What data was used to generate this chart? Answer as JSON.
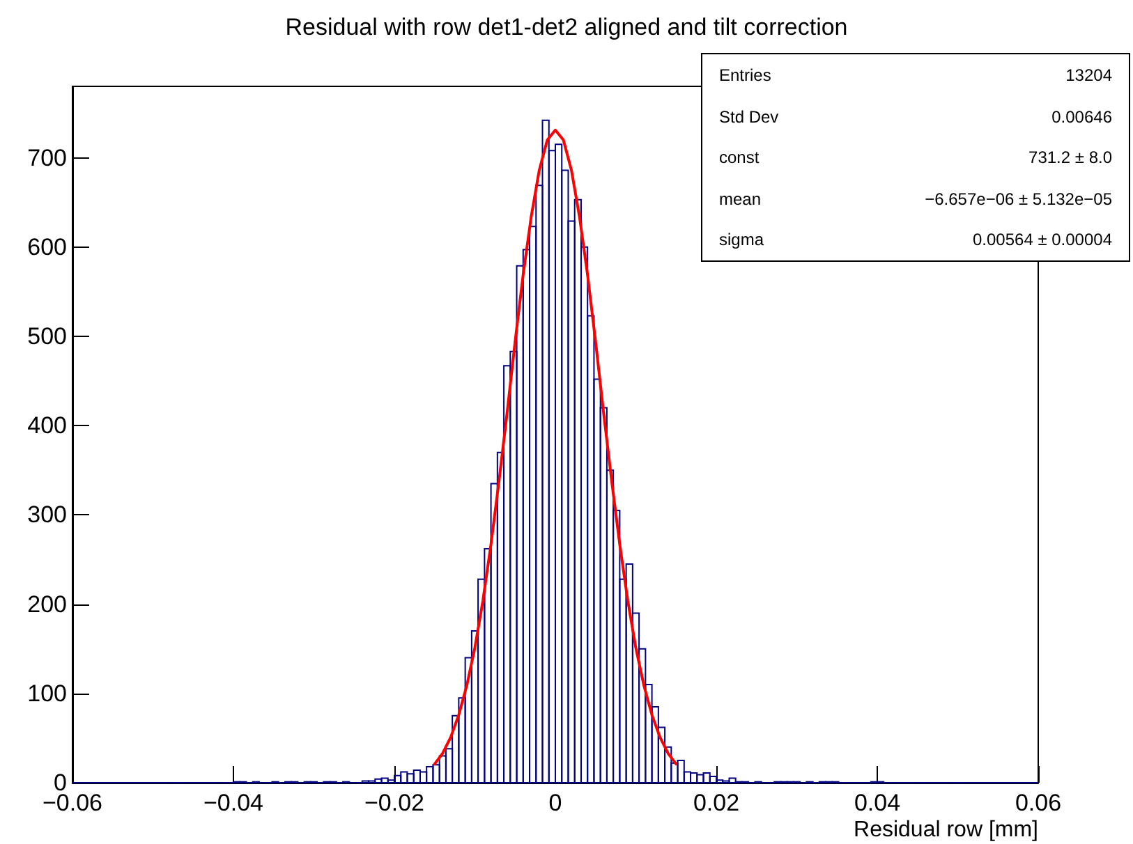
{
  "chart_data": {
    "type": "histogram",
    "title": "Residual with row det1-det2 aligned and tilt correction",
    "xlabel": "Residual row [mm]",
    "annotations": [
      "Entries",
      "13204",
      "Std Dev",
      "0.00646",
      "const",
      "731.2  ± 8.0",
      "mean",
      "−6.657e−06  ± 5.132e−05",
      "sigma",
      "0.00564  ± 0.00004"
    ],
    "bins": [
      -0.06,
      -0.0592,
      -0.0584,
      -0.0576,
      -0.0568,
      -0.056,
      -0.0552,
      -0.0544,
      -0.0536,
      -0.0528,
      -0.052,
      -0.0512,
      -0.0504,
      -0.0496,
      -0.0488,
      -0.048,
      -0.0472,
      -0.0464,
      -0.0456,
      -0.0448,
      -0.044,
      -0.0432,
      -0.0424,
      -0.0416,
      -0.0408,
      -0.04,
      -0.0392,
      -0.0384,
      -0.0376,
      -0.0368,
      -0.036,
      -0.0352,
      -0.0344,
      -0.0336,
      -0.0328,
      -0.032,
      -0.0312,
      -0.0304,
      -0.0296,
      -0.0288,
      -0.028,
      -0.0272,
      -0.0264,
      -0.0256,
      -0.0248,
      -0.024,
      -0.0232,
      -0.0224,
      -0.0216,
      -0.0208,
      -0.02,
      -0.0192,
      -0.0184,
      -0.0176,
      -0.0168,
      -0.016,
      -0.0152,
      -0.0144,
      -0.0136,
      -0.0128,
      -0.012,
      -0.0112,
      -0.0104,
      -0.0096,
      -0.0088,
      -0.008,
      -0.0072,
      -0.0064,
      -0.0056,
      -0.0048,
      -0.004,
      -0.0032,
      -0.0024,
      -0.0016,
      -0.0008,
      0,
      0.0008,
      0.0016,
      0.0024,
      0.0032,
      0.004,
      0.0048,
      0.0056,
      0.0064,
      0.0072,
      0.008,
      0.0088,
      0.0096,
      0.0104,
      0.0112,
      0.012,
      0.0128,
      0.0136,
      0.0144,
      0.0152,
      0.016,
      0.0168,
      0.0176,
      0.0184,
      0.0192,
      0.02,
      0.0208,
      0.0216,
      0.0224,
      0.0232,
      0.024,
      0.0248,
      0.0256,
      0.0264,
      0.0272,
      0.028,
      0.0288,
      0.0296,
      0.0304,
      0.0312,
      0.032,
      0.0328,
      0.0336,
      0.0344,
      0.0352,
      0.036,
      0.0368,
      0.0376,
      0.0384,
      0.0392,
      0.04,
      0.0408,
      0.0416,
      0.0424,
      0.0432,
      0.044,
      0.0448,
      0.0456,
      0.0464,
      0.0472,
      0.048,
      0.0488,
      0.0496,
      0.0504,
      0.0512,
      0.052,
      0.0528,
      0.0536,
      0.0544,
      0.0552,
      0.056,
      0.0568,
      0.0576,
      0.0584,
      0.0592,
      0.06
    ],
    "series": [
      {
        "color": "#000080",
        "values": [
          0,
          0,
          0,
          0,
          0,
          0,
          0,
          0,
          0,
          0,
          0,
          0,
          0,
          0,
          0,
          0,
          0,
          0,
          0,
          0,
          0,
          0,
          0,
          0,
          0,
          1,
          1,
          0,
          1,
          0,
          0,
          1,
          0,
          1,
          1,
          0,
          1,
          1,
          0,
          1,
          1,
          0,
          1,
          0,
          0,
          2,
          2,
          4,
          5,
          3,
          8,
          12,
          10,
          14,
          12,
          18,
          20,
          30,
          38,
          75,
          95,
          140,
          170,
          228,
          262,
          335,
          370,
          467,
          483,
          579,
          597,
          623,
          669,
          742,
          708,
          715,
          686,
          629,
          653,
          600,
          523,
          452,
          420,
          350,
          305,
          228,
          245,
          190,
          150,
          110,
          85,
          62,
          40,
          22,
          25,
          12,
          11,
          9,
          11,
          7,
          3,
          2,
          5,
          1,
          1,
          0,
          1,
          0,
          0,
          1,
          1,
          1,
          1,
          0,
          1,
          0,
          1,
          1,
          1,
          0,
          0,
          0,
          0,
          0,
          1,
          1,
          0,
          0,
          0,
          0,
          0,
          0,
          0,
          0,
          0,
          0,
          0,
          0,
          0,
          0,
          0,
          0,
          0,
          0,
          0,
          0,
          0,
          0,
          0,
          0
        ]
      },
      {
        "type": "line",
        "color": "#ff0000",
        "x": [
          -0.015,
          -0.014,
          -0.013,
          -0.012,
          -0.011,
          -0.01,
          -0.009,
          -0.008,
          -0.007,
          -0.006,
          -0.005,
          -0.004,
          -0.003,
          -0.002,
          -0.001,
          0,
          0.001,
          0.002,
          0.003,
          0.004,
          0.005,
          0.006,
          0.007,
          0.008,
          0.009,
          0.01,
          0.011,
          0.012,
          0.013,
          0.014,
          0.015
        ],
        "values": [
          21,
          33,
          51,
          76,
          109,
          151,
          204,
          267,
          338,
          414,
          494,
          569,
          634,
          686,
          720,
          731,
          720,
          686,
          634,
          569,
          494,
          414,
          338,
          267,
          204,
          151,
          109,
          76,
          51,
          33,
          21
        ]
      }
    ],
    "xlim": [
      -0.06,
      0.06
    ],
    "xticks": [
      -0.06,
      -0.04,
      -0.02,
      0,
      0.02,
      0.04,
      0.06
    ],
    "ylim": [
      0,
      780
    ],
    "yticks": [
      0,
      100,
      200,
      300,
      400,
      500,
      600,
      700
    ],
    "grid": false
  }
}
